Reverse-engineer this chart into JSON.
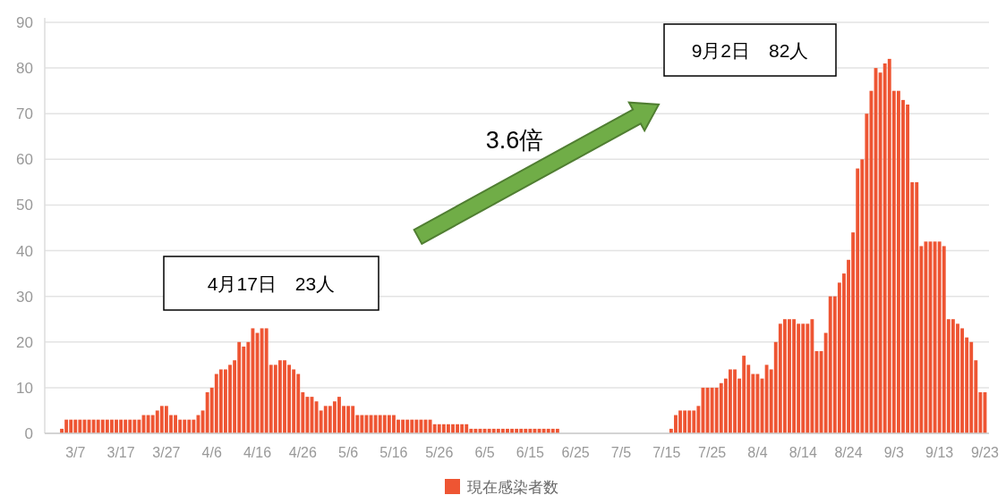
{
  "chart_data": {
    "type": "bar",
    "categories": [
      null,
      null,
      null,
      "3/7",
      null,
      null,
      null,
      null,
      null,
      null,
      null,
      null,
      null,
      "3/17",
      null,
      null,
      null,
      null,
      null,
      null,
      null,
      null,
      null,
      "3/27",
      null,
      null,
      null,
      null,
      null,
      null,
      null,
      null,
      null,
      "4/6",
      null,
      null,
      null,
      null,
      null,
      null,
      null,
      null,
      null,
      "4/16",
      null,
      null,
      null,
      null,
      null,
      null,
      null,
      null,
      null,
      "4/26",
      null,
      null,
      null,
      null,
      null,
      null,
      null,
      null,
      null,
      "5/6",
      null,
      null,
      null,
      null,
      null,
      null,
      null,
      null,
      null,
      "5/16",
      null,
      null,
      null,
      null,
      null,
      null,
      null,
      null,
      null,
      "5/26",
      null,
      null,
      null,
      null,
      null,
      null,
      null,
      null,
      null,
      "6/5",
      null,
      null,
      null,
      null,
      null,
      null,
      null,
      null,
      null,
      "6/15",
      null,
      null,
      null,
      null,
      null,
      null,
      null,
      null,
      null,
      "6/25",
      null,
      null,
      null,
      null,
      null,
      null,
      null,
      null,
      null,
      "7/5",
      null,
      null,
      null,
      null,
      null,
      null,
      null,
      null,
      null,
      "7/15",
      null,
      null,
      null,
      null,
      null,
      null,
      null,
      null,
      null,
      "7/25",
      null,
      null,
      null,
      null,
      null,
      null,
      null,
      null,
      null,
      "8/4",
      null,
      null,
      null,
      null,
      null,
      null,
      null,
      null,
      null,
      "8/14",
      null,
      null,
      null,
      null,
      null,
      null,
      null,
      null,
      null,
      "8/24",
      null,
      null,
      null,
      null,
      null,
      null,
      null,
      null,
      null,
      "9/3",
      null,
      null,
      null,
      null,
      null,
      null,
      null,
      null,
      null,
      "9/13",
      null,
      null,
      null,
      null,
      null,
      null,
      null,
      null,
      null,
      "9/23"
    ],
    "series": [
      {
        "name": "現在感染者数",
        "color": "#ee5533",
        "values": [
          1,
          3,
          3,
          3,
          3,
          3,
          3,
          3,
          3,
          3,
          3,
          3,
          3,
          3,
          3,
          3,
          3,
          3,
          4,
          4,
          4,
          5,
          6,
          6,
          4,
          4,
          3,
          3,
          3,
          3,
          4,
          5,
          9,
          10,
          13,
          14,
          14,
          15,
          16,
          20,
          19,
          20,
          23,
          22,
          23,
          23,
          15,
          15,
          16,
          16,
          15,
          14,
          13,
          9,
          8,
          8,
          7,
          5,
          6,
          6,
          7,
          8,
          6,
          6,
          6,
          4,
          4,
          4,
          4,
          4,
          4,
          4,
          4,
          4,
          3,
          3,
          3,
          3,
          3,
          3,
          3,
          3,
          2,
          2,
          2,
          2,
          2,
          2,
          2,
          2,
          1,
          1,
          1,
          1,
          1,
          1,
          1,
          1,
          1,
          1,
          1,
          1,
          1,
          1,
          1,
          1,
          1,
          1,
          1,
          1,
          0,
          0,
          0,
          0,
          0,
          0,
          0,
          0,
          0,
          0,
          0,
          0,
          0,
          0,
          0,
          0,
          0,
          0,
          0,
          0,
          0,
          0,
          0,
          0,
          1,
          4,
          5,
          5,
          5,
          5,
          6,
          10,
          10,
          10,
          10,
          11,
          12,
          14,
          14,
          12,
          17,
          15,
          13,
          13,
          12,
          15,
          14,
          20,
          24,
          25,
          25,
          25,
          24,
          24,
          24,
          25,
          18,
          18,
          22,
          30,
          30,
          33,
          35,
          38,
          44,
          58,
          60,
          70,
          75,
          80,
          79,
          81,
          82,
          75,
          75,
          73,
          72,
          55,
          55,
          41,
          42,
          42,
          42,
          42,
          41,
          25,
          25,
          24,
          23,
          21,
          20,
          16,
          9,
          9
        ]
      }
    ],
    "ylim": [
      0,
      90
    ],
    "yticks": [
      0,
      10,
      20,
      30,
      40,
      50,
      60,
      70,
      80,
      90
    ],
    "grid": "y",
    "legend": "bottom",
    "annotations": [
      "4月17日　23人",
      "9月2日　82人",
      "3.6倍"
    ]
  }
}
